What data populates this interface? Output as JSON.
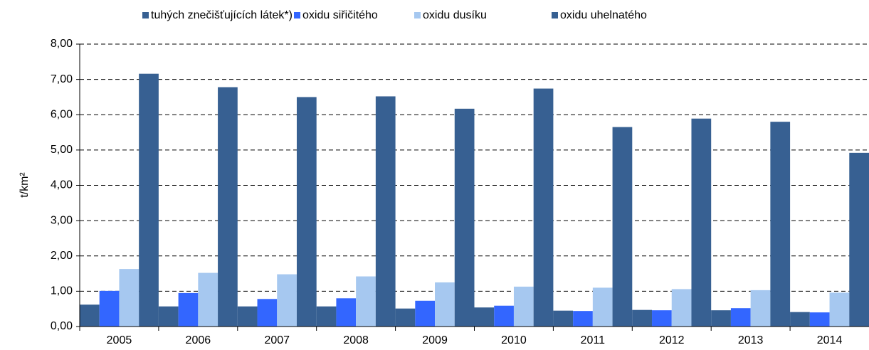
{
  "chart_data": {
    "type": "bar",
    "y_label": "t/km²",
    "categories": [
      "2005",
      "2006",
      "2007",
      "2008",
      "2009",
      "2010",
      "2011",
      "2012",
      "2013",
      "2014"
    ],
    "series": [
      {
        "name": "tuhých znečišťujících látek*)",
        "color": "#376092",
        "values": [
          0.62,
          0.57,
          0.57,
          0.57,
          0.51,
          0.54,
          0.45,
          0.47,
          0.46,
          0.41
        ]
      },
      {
        "name": "oxidu siřičitého",
        "color": "#3366ff",
        "values": [
          1.01,
          0.95,
          0.78,
          0.8,
          0.73,
          0.59,
          0.44,
          0.46,
          0.52,
          0.4
        ]
      },
      {
        "name": "oxidu dusíku",
        "color": "#a6c8f0",
        "values": [
          1.63,
          1.52,
          1.48,
          1.42,
          1.25,
          1.13,
          1.1,
          1.06,
          1.03,
          0.96
        ]
      },
      {
        "name": "oxidu uhelnatého",
        "color": "#376092",
        "values": [
          7.16,
          6.78,
          6.5,
          6.52,
          6.17,
          6.74,
          5.65,
          5.89,
          5.8,
          4.92
        ]
      }
    ],
    "ylim": [
      0,
      8
    ],
    "yticks": [
      {
        "value": 0,
        "label": "0,00"
      },
      {
        "value": 1,
        "label": "1,00"
      },
      {
        "value": 2,
        "label": "2,00"
      },
      {
        "value": 3,
        "label": "3,00"
      },
      {
        "value": 4,
        "label": "4,00"
      },
      {
        "value": 5,
        "label": "5,00"
      },
      {
        "value": 6,
        "label": "6,00"
      },
      {
        "value": 7,
        "label": "7,00"
      },
      {
        "value": 8,
        "label": "8,00"
      }
    ],
    "grid": true,
    "legend": "top"
  }
}
